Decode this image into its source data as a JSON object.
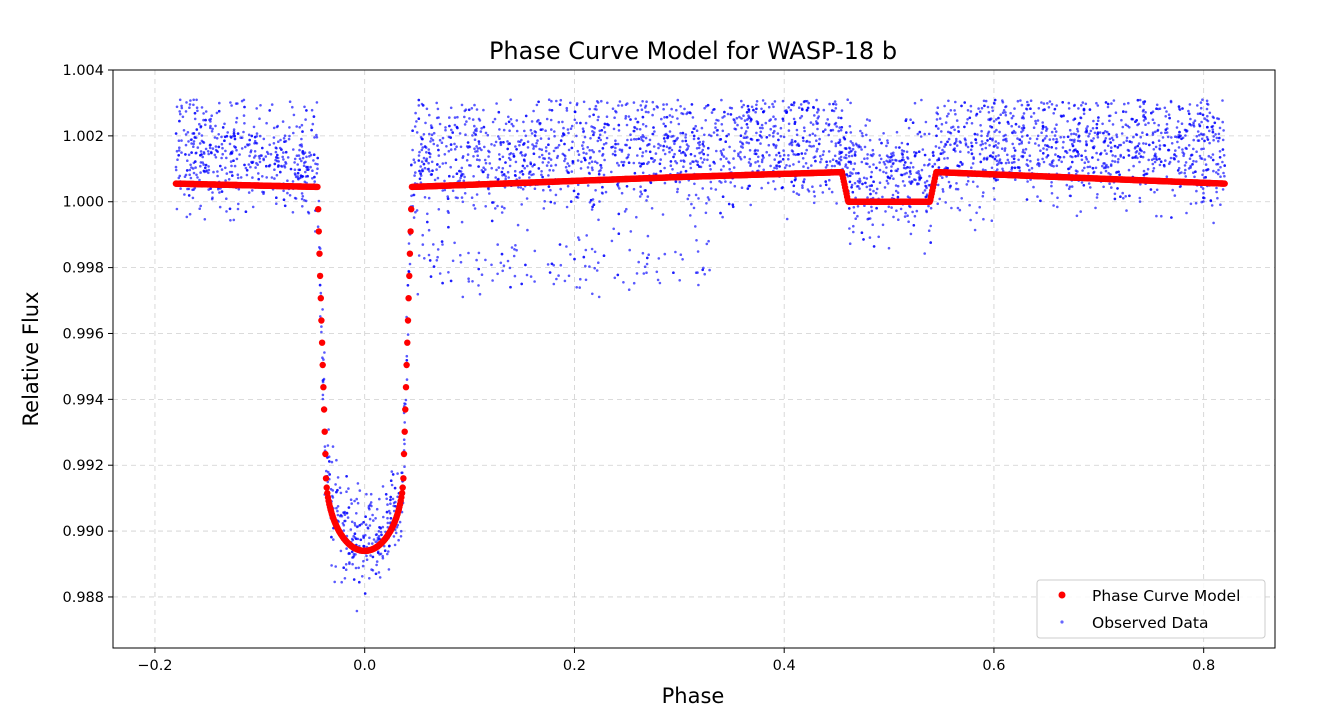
{
  "chart_data": {
    "type": "scatter",
    "title": "Phase Curve Model for WASP-18 b",
    "xlabel": "Phase",
    "ylabel": "Relative Flux",
    "xlim": [
      -0.24,
      0.868
    ],
    "ylim": [
      0.98645,
      1.004
    ],
    "xticks": [
      -0.2,
      0.0,
      0.2,
      0.4,
      0.6,
      0.8
    ],
    "xtick_labels": [
      "−0.2",
      "0.0",
      "0.2",
      "0.4",
      "0.6",
      "0.8"
    ],
    "yticks": [
      0.988,
      0.99,
      0.992,
      0.994,
      0.996,
      0.998,
      1.0,
      1.002,
      1.004
    ],
    "ytick_labels": [
      "0.988",
      "0.990",
      "0.992",
      "0.994",
      "0.996",
      "0.998",
      "1.000",
      "1.002",
      "1.004"
    ],
    "grid": true,
    "legend_position": "lower-right",
    "series": [
      {
        "name": "Phase Curve Model",
        "color": "#ff0000",
        "marker": "dot",
        "x_range": [
          -0.18,
          0.82
        ],
        "transit": {
          "depth": 0.0106,
          "t1": -0.045,
          "t2": -0.037,
          "t3": 0.037,
          "t4": 0.045
        },
        "secondary_eclipse": {
          "t1": 0.455,
          "t2": 0.461,
          "t3": 0.539,
          "t4": 0.545
        },
        "baseline": [
          {
            "x": -0.18,
            "y": 1.00055
          },
          {
            "x": -0.045,
            "y": 1.00045
          },
          {
            "x": 0.045,
            "y": 1.00045
          },
          {
            "x": 0.3,
            "y": 1.00075
          },
          {
            "x": 0.455,
            "y": 1.0009
          },
          {
            "x": 0.545,
            "y": 1.0009
          },
          {
            "x": 0.82,
            "y": 1.00055
          }
        ],
        "eclipse_flux": 1.0
      },
      {
        "name": "Observed Data",
        "color": "#0000ff",
        "marker": "small-dot",
        "scatter_sigma": 0.00085,
        "secondary_cluster": {
          "x_range": [
            0.05,
            0.33
          ],
          "y_center": 0.9982,
          "y_sigma": 0.0005
        },
        "x_range": [
          -0.18,
          0.82
        ]
      }
    ]
  }
}
